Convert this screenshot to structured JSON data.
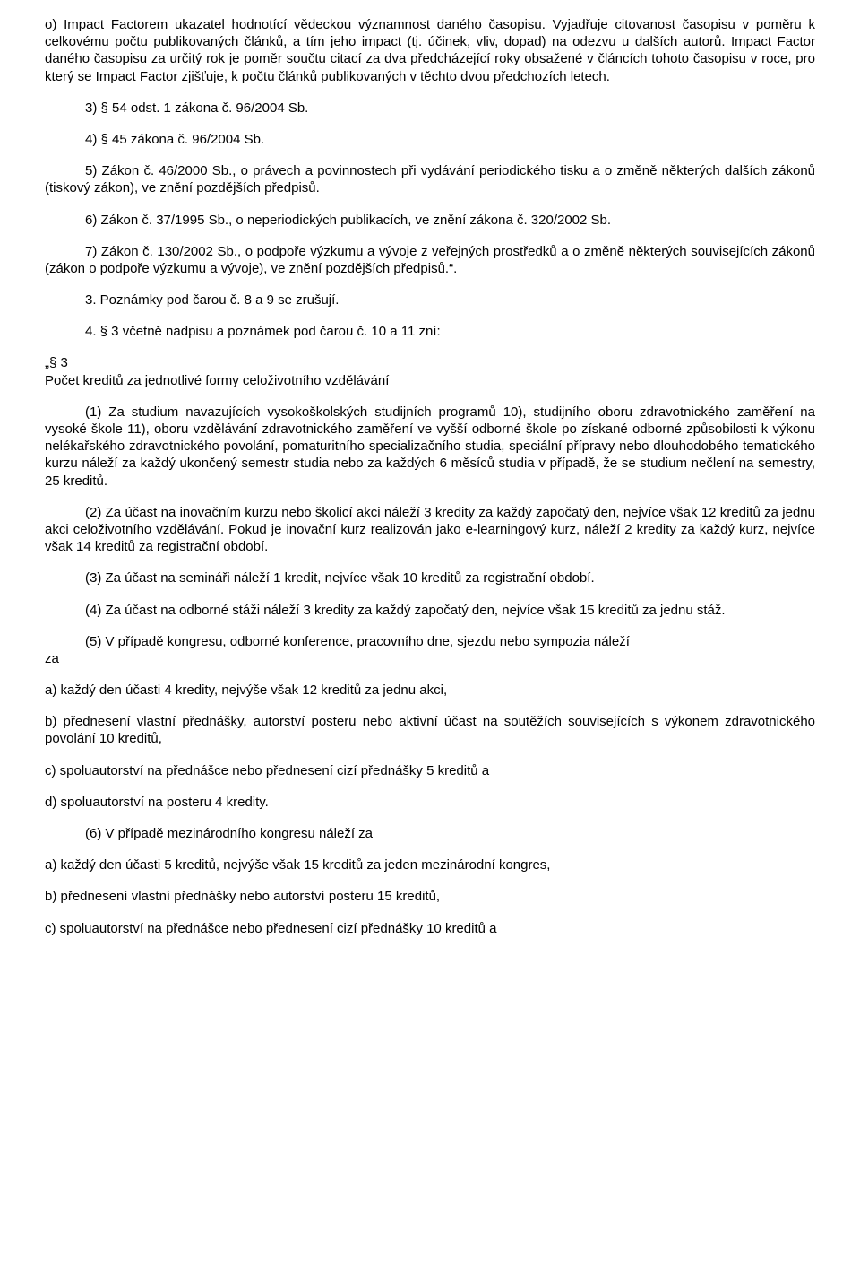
{
  "p1": "o) Impact Factorem ukazatel hodnotící vědeckou významnost daného časopisu. Vyjadřuje citovanost časopisu v poměru k celkovému počtu publikovaných článků, a tím jeho impact (tj. účinek, vliv, dopad) na odezvu u dalších autorů. Impact Factor daného časopisu za určitý rok je poměr součtu citací za dva předcházející roky obsažené v článcích tohoto časopisu v roce, pro který se Impact Factor zjišťuje, k počtu článků publikovaných v těchto dvou předchozích letech.",
  "p2": "3) § 54 odst. 1 zákona č. 96/2004 Sb.",
  "p3": "4) § 45 zákona č. 96/2004 Sb.",
  "p4": "5) Zákon č. 46/2000 Sb., o právech a povinnostech při vydávání periodického tisku a o změně některých dalších zákonů (tiskový zákon), ve znění pozdějších předpisů.",
  "p5": "6) Zákon č. 37/1995 Sb., o neperiodických publikacích, ve znění zákona č. 320/2002 Sb.",
  "p6": "7) Zákon č. 130/2002 Sb., o podpoře výzkumu a vývoje z veřejných prostředků a o změně některých souvisejících zákonů (zákon o podpoře výzkumu a vývoje), ve znění pozdějších předpisů.“.",
  "p7": "3. Poznámky pod čarou č. 8 a 9 se zrušují.",
  "p8": "4. § 3 včetně nadpisu a poznámek pod čarou č. 10 a 11 zní:",
  "p9a": "„§ 3",
  "p9b": "Počet kreditů za jednotlivé formy celoživotního vzdělávání",
  "p10": "(1) Za studium navazujících vysokoškolských studijních programů 10), studijního oboru zdravotnického zaměření na vysoké škole 11), oboru vzdělávání zdravotnického zaměření ve vyšší odborné škole po získané odborné způsobilosti k výkonu nelékařského zdravotnického povolání, pomaturitního specializačního studia, speciální přípravy nebo dlouhodobého tematického kurzu náleží za každý ukončený semestr studia nebo za každých 6 měsíců studia v případě, že se studium nečlení na semestry, 25 kreditů.",
  "p11": "(2) Za účast na inovačním kurzu nebo školicí akci náleží 3 kredity za každý započatý den, nejvíce však 12 kreditů za jednu akci celoživotního vzdělávání. Pokud je inovační kurz realizován jako e-learningový kurz, náleží 2 kredity za každý kurz, nejvíce však 14 kreditů za registrační období.",
  "p12": "(3) Za účast na semináři náleží 1 kredit, nejvíce však 10 kreditů za registrační období.",
  "p13": "(4) Za účast na odborné stáži náleží 3 kredity za každý započatý den, nejvíce však 15 kreditů za jednu stáž.",
  "p14pre": "za",
  "p14": "(5) V případě kongresu, odborné konference, pracovního dne, sjezdu nebo sympozia náleží",
  "p15": "a) každý den účasti 4 kredity, nejvýše však 12 kreditů za jednu akci,",
  "p16": "b) přednesení vlastní přednášky, autorství posteru nebo aktivní účast na soutěžích souvisejících s výkonem zdravotnického povolání 10 kreditů,",
  "p17": "c) spoluautorství na přednášce nebo přednesení cizí přednášky 5 kreditů a",
  "p18": "d) spoluautorství na posteru 4 kredity.",
  "p19": "(6) V případě mezinárodního kongresu náleží za",
  "p20": "a) každý den účasti 5 kreditů, nejvýše však 15 kreditů za jeden mezinárodní kongres,",
  "p21": "b) přednesení vlastní přednášky nebo autorství posteru 15 kreditů,",
  "p22": "c) spoluautorství na přednášce nebo přednesení cizí přednášky 10 kreditů a"
}
